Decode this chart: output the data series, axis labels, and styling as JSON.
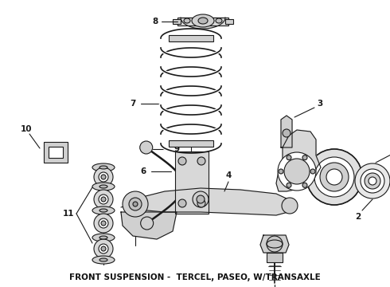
{
  "title": "FRONT SUSPENSION -  TERCEL, PASEO, W/TRANSAXLE",
  "title_fontsize": 7.5,
  "title_fontweight": "bold",
  "bg_color": "#ffffff",
  "line_color": "#1a1a1a",
  "figsize": [
    4.9,
    3.6
  ],
  "dpi": 100,
  "xlim": [
    0,
    490
  ],
  "ylim": [
    0,
    360
  ]
}
